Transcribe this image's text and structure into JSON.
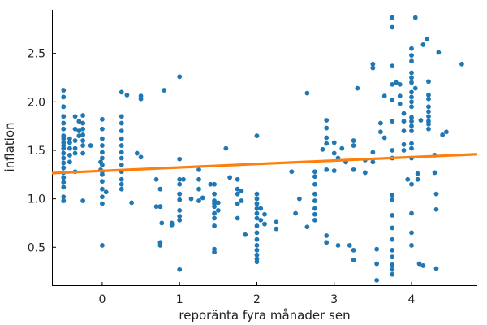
{
  "chart_data": {
    "type": "scatter",
    "xlabel": "reporänta fyra månader sen",
    "ylabel": "inflation",
    "xlim": [
      -0.65,
      4.85
    ],
    "ylim": [
      0.1,
      2.95
    ],
    "x_ticks": [
      "0",
      "1",
      "2",
      "3",
      "4"
    ],
    "x_tick_values": [
      0,
      1,
      2,
      3,
      4
    ],
    "y_ticks": [
      "0.5",
      "1.0",
      "1.5",
      "2.0",
      "2.5"
    ],
    "y_tick_values": [
      0.5,
      1.0,
      1.5,
      2.0,
      2.5
    ],
    "grid": false,
    "colors": {
      "points": "#1f77b4",
      "fit_line": "#ff7f0e"
    },
    "fit_line": {
      "x": [
        -0.65,
        4.85
      ],
      "y": [
        1.265,
        1.46
      ]
    },
    "points": [
      [
        -0.5,
        2.12
      ],
      [
        -0.5,
        2.05
      ],
      [
        -0.5,
        1.95
      ],
      [
        -0.5,
        1.85
      ],
      [
        -0.5,
        1.78
      ],
      [
        -0.5,
        1.72
      ],
      [
        -0.5,
        1.65
      ],
      [
        -0.5,
        1.58
      ],
      [
        -0.5,
        1.52
      ],
      [
        -0.5,
        1.47
      ],
      [
        -0.5,
        1.42
      ],
      [
        -0.5,
        1.37
      ],
      [
        -0.5,
        1.32
      ],
      [
        -0.5,
        1.27
      ],
      [
        -0.5,
        1.22
      ],
      [
        -0.5,
        1.17
      ],
      [
        -0.5,
        1.12
      ],
      [
        -0.5,
        1.02
      ],
      [
        -0.5,
        0.98
      ],
      [
        -0.5,
        1.62
      ],
      [
        -0.5,
        1.55
      ],
      [
        -0.42,
        1.62
      ],
      [
        -0.42,
        1.58
      ],
      [
        -0.42,
        1.52
      ],
      [
        -0.42,
        1.45
      ],
      [
        -0.42,
        1.38
      ],
      [
        -0.35,
        1.85
      ],
      [
        -0.35,
        1.72
      ],
      [
        -0.35,
        1.6
      ],
      [
        -0.35,
        1.52
      ],
      [
        -0.35,
        1.47
      ],
      [
        -0.35,
        1.28
      ],
      [
        -0.3,
        1.8
      ],
      [
        -0.3,
        1.7
      ],
      [
        -0.3,
        1.65
      ],
      [
        -0.25,
        1.86
      ],
      [
        -0.25,
        1.78
      ],
      [
        -0.25,
        1.72
      ],
      [
        -0.25,
        1.66
      ],
      [
        -0.25,
        1.6
      ],
      [
        -0.25,
        1.55
      ],
      [
        -0.25,
        1.47
      ],
      [
        -0.25,
        0.98
      ],
      [
        -0.15,
        1.55
      ],
      [
        -0.02,
        1.38
      ],
      [
        -0.02,
        1.3
      ],
      [
        0,
        1.82
      ],
      [
        0,
        1.72
      ],
      [
        0,
        1.62
      ],
      [
        0,
        1.55
      ],
      [
        0,
        1.48
      ],
      [
        0,
        1.42
      ],
      [
        0,
        1.35
      ],
      [
        0,
        1.28
      ],
      [
        0,
        1.25
      ],
      [
        0,
        1.18
      ],
      [
        0,
        1.1
      ],
      [
        0,
        1.02
      ],
      [
        0,
        0.95
      ],
      [
        0,
        0.52
      ],
      [
        0.05,
        1.07
      ],
      [
        0.25,
        2.1
      ],
      [
        0.25,
        1.85
      ],
      [
        0.25,
        1.78
      ],
      [
        0.25,
        1.7
      ],
      [
        0.25,
        1.62
      ],
      [
        0.25,
        1.55
      ],
      [
        0.25,
        1.48
      ],
      [
        0.25,
        1.42
      ],
      [
        0.25,
        1.35
      ],
      [
        0.25,
        1.28
      ],
      [
        0.25,
        1.2
      ],
      [
        0.25,
        1.15
      ],
      [
        0.25,
        1.1
      ],
      [
        0.32,
        2.07
      ],
      [
        0.38,
        0.96
      ],
      [
        0.45,
        1.47
      ],
      [
        0.5,
        2.06
      ],
      [
        0.5,
        2.03
      ],
      [
        0.5,
        1.43
      ],
      [
        0.7,
        1.2
      ],
      [
        0.75,
        1.1
      ],
      [
        0.75,
        0.92
      ],
      [
        0.8,
        2.12
      ],
      [
        0.7,
        0.92
      ],
      [
        0.75,
        0.92
      ],
      [
        0.75,
        0.55
      ],
      [
        0.75,
        0.52
      ],
      [
        0.77,
        0.75
      ],
      [
        0.9,
        0.75
      ],
      [
        0.9,
        0.73
      ],
      [
        1,
        2.26
      ],
      [
        1,
        1.41
      ],
      [
        1,
        1.2
      ],
      [
        1,
        1.15
      ],
      [
        1,
        1.05
      ],
      [
        1,
        0.99
      ],
      [
        1,
        0.88
      ],
      [
        1,
        0.82
      ],
      [
        1,
        0.78
      ],
      [
        1,
        0.27
      ],
      [
        1,
        1.05
      ],
      [
        1.05,
        1.2
      ],
      [
        1.15,
        1.0
      ],
      [
        1.25,
        1.3
      ],
      [
        1.25,
        1.2
      ],
      [
        1.25,
        1.1
      ],
      [
        1.25,
        0.98
      ],
      [
        1.3,
        1.01
      ],
      [
        1.4,
        1.15
      ],
      [
        1.45,
        1.15
      ],
      [
        1.45,
        1.05
      ],
      [
        1.45,
        0.98
      ],
      [
        1.45,
        0.95
      ],
      [
        1.45,
        0.92
      ],
      [
        1.45,
        0.85
      ],
      [
        1.45,
        0.8
      ],
      [
        1.45,
        0.72
      ],
      [
        1.45,
        0.48
      ],
      [
        1.45,
        0.45
      ],
      [
        1.5,
        0.96
      ],
      [
        1.5,
        0.88
      ],
      [
        1.6,
        1.52
      ],
      [
        1.65,
        1.22
      ],
      [
        1.75,
        1.2
      ],
      [
        1.75,
        1.1
      ],
      [
        1.75,
        1.05
      ],
      [
        1.75,
        0.95
      ],
      [
        1.75,
        0.8
      ],
      [
        1.8,
        1.08
      ],
      [
        1.8,
        0.98
      ],
      [
        1.85,
        0.63
      ],
      [
        2,
        1.65
      ],
      [
        2,
        1.05
      ],
      [
        2,
        1.0
      ],
      [
        2,
        0.95
      ],
      [
        2,
        0.9
      ],
      [
        2,
        0.85
      ],
      [
        2,
        0.8
      ],
      [
        2,
        0.72
      ],
      [
        2,
        0.65
      ],
      [
        2,
        0.58
      ],
      [
        2,
        0.52
      ],
      [
        2,
        0.47
      ],
      [
        2,
        0.42
      ],
      [
        2,
        0.38
      ],
      [
        2,
        0.35
      ],
      [
        2.05,
        0.9
      ],
      [
        2.05,
        0.78
      ],
      [
        2.1,
        0.84
      ],
      [
        2.1,
        0.74
      ],
      [
        2.25,
        0.76
      ],
      [
        2.25,
        0.69
      ],
      [
        2.45,
        1.28
      ],
      [
        2.5,
        0.85
      ],
      [
        2.55,
        1.0
      ],
      [
        2.65,
        2.09
      ],
      [
        2.65,
        0.71
      ],
      [
        2.75,
        1.28
      ],
      [
        2.75,
        1.23
      ],
      [
        2.75,
        1.15
      ],
      [
        2.75,
        1.05
      ],
      [
        2.75,
        0.98
      ],
      [
        2.75,
        0.9
      ],
      [
        2.75,
        0.84
      ],
      [
        2.75,
        0.78
      ],
      [
        2.85,
        1.51
      ],
      [
        2.9,
        1.81
      ],
      [
        2.9,
        1.73
      ],
      [
        2.9,
        1.63
      ],
      [
        2.9,
        1.57
      ],
      [
        2.9,
        1.3
      ],
      [
        2.9,
        0.62
      ],
      [
        2.9,
        0.55
      ],
      [
        3,
        1.58
      ],
      [
        3,
        1.47
      ],
      [
        3,
        1.29
      ],
      [
        3.05,
        1.42
      ],
      [
        3.05,
        0.52
      ],
      [
        3.1,
        1.52
      ],
      [
        3.15,
        1.38
      ],
      [
        3.2,
        0.52
      ],
      [
        3.25,
        1.6
      ],
      [
        3.25,
        1.55
      ],
      [
        3.25,
        1.3
      ],
      [
        3.25,
        0.47
      ],
      [
        3.25,
        0.37
      ],
      [
        3.3,
        2.14
      ],
      [
        3.4,
        1.27
      ],
      [
        3.4,
        1.4
      ],
      [
        3.5,
        2.39
      ],
      [
        3.5,
        2.35
      ],
      [
        3.5,
        1.48
      ],
      [
        3.5,
        1.38
      ],
      [
        3.55,
        0.48
      ],
      [
        3.55,
        0.33
      ],
      [
        3.55,
        0.16
      ],
      [
        3.6,
        1.78
      ],
      [
        3.6,
        1.69
      ],
      [
        3.65,
        2.06
      ],
      [
        3.65,
        1.63
      ],
      [
        3.75,
        2.87
      ],
      [
        3.75,
        2.77
      ],
      [
        3.75,
        2.37
      ],
      [
        3.75,
        2.18
      ],
      [
        3.75,
        2.02
      ],
      [
        3.75,
        1.8
      ],
      [
        3.75,
        1.5
      ],
      [
        3.75,
        1.42
      ],
      [
        3.75,
        1.04
      ],
      [
        3.75,
        0.99
      ],
      [
        3.75,
        0.83
      ],
      [
        3.75,
        0.7
      ],
      [
        3.75,
        0.58
      ],
      [
        3.75,
        0.47
      ],
      [
        3.75,
        0.4
      ],
      [
        3.75,
        0.32
      ],
      [
        3.75,
        0.27
      ],
      [
        3.75,
        0.22
      ],
      [
        3.8,
        2.2
      ],
      [
        3.85,
        2.18
      ],
      [
        3.85,
        2.06
      ],
      [
        3.85,
        1.98
      ],
      [
        3.9,
        1.88
      ],
      [
        3.9,
        1.8
      ],
      [
        3.9,
        1.7
      ],
      [
        3.9,
        1.56
      ],
      [
        3.9,
        1.5
      ],
      [
        3.95,
        1.2
      ],
      [
        4,
        2.55
      ],
      [
        4,
        2.48
      ],
      [
        4,
        2.42
      ],
      [
        4,
        2.3
      ],
      [
        4,
        2.25
      ],
      [
        4,
        2.2
      ],
      [
        4,
        2.1
      ],
      [
        4,
        2.05
      ],
      [
        4,
        2.0
      ],
      [
        4,
        1.95
      ],
      [
        4,
        1.84
      ],
      [
        4,
        1.8
      ],
      [
        4,
        1.75
      ],
      [
        4,
        1.7
      ],
      [
        4,
        1.57
      ],
      [
        4,
        1.52
      ],
      [
        4,
        1.42
      ],
      [
        4,
        1.15
      ],
      [
        4,
        0.85
      ],
      [
        4,
        0.65
      ],
      [
        4,
        0.52
      ],
      [
        4.05,
        2.87
      ],
      [
        4.05,
        2.14
      ],
      [
        4.08,
        1.26
      ],
      [
        4.08,
        1.2
      ],
      [
        4.1,
        0.33
      ],
      [
        4.12,
        1.81
      ],
      [
        4.15,
        2.59
      ],
      [
        4.15,
        0.31
      ],
      [
        4.2,
        2.65
      ],
      [
        4.22,
        2.21
      ],
      [
        4.22,
        2.07
      ],
      [
        4.22,
        2.03
      ],
      [
        4.22,
        1.95
      ],
      [
        4.22,
        1.9
      ],
      [
        4.22,
        1.85
      ],
      [
        4.22,
        1.8
      ],
      [
        4.22,
        1.77
      ],
      [
        4.22,
        1.72
      ],
      [
        4.3,
        1.45
      ],
      [
        4.3,
        1.27
      ],
      [
        4.32,
        1.05
      ],
      [
        4.32,
        0.89
      ],
      [
        4.32,
        0.28
      ],
      [
        4.35,
        2.51
      ],
      [
        4.4,
        1.66
      ],
      [
        4.45,
        1.69
      ],
      [
        4.65,
        2.39
      ]
    ]
  }
}
